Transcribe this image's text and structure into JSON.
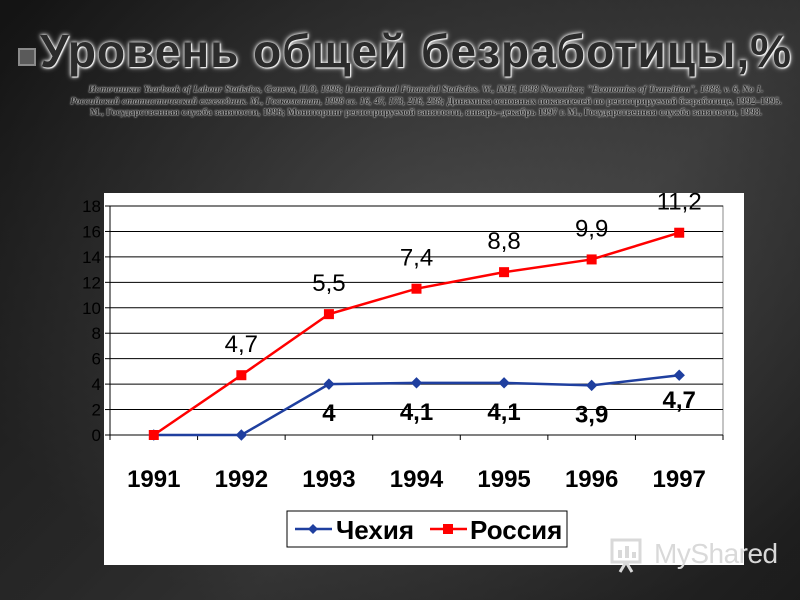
{
  "slide": {
    "title": "Уровень общей безработицы,%",
    "sources": {
      "label": "Источники:",
      "line1": "Yearbook of Labour Statistics, Geneva, ILO, 1998; International Financial Statistics. W., IMF, 1998 November; \"Economics of Transition\", 1988, v. 6, No 1.",
      "line2_italic": "Российский статистический ежегодник. М., Госкомстат, 1998 сс. 16, 47, 173, 216, 238;",
      "line2_rest": "Динамика основных показателей по регистрируемой безработице, 1992–1995. М., Государственная служба занятости, 1996; Мониторинг регистрируемой занятости, январь–декабрь 1997 г. М., Государственная служба занятости, 1998."
    }
  },
  "watermark": {
    "text": "MyShared"
  },
  "chart_data": {
    "type": "line",
    "title": "",
    "xlabel": "",
    "ylabel": "",
    "categories": [
      "1991",
      "1992",
      "1993",
      "1994",
      "1995",
      "1996",
      "1997"
    ],
    "ylim": [
      0,
      18
    ],
    "yticks": [
      0,
      2,
      4,
      6,
      8,
      10,
      12,
      14,
      16,
      18
    ],
    "grid": true,
    "legend_position": "bottom",
    "series": [
      {
        "name": "Чехия",
        "color": "#1f3f9f",
        "marker": "diamond",
        "values": [
          0,
          0,
          4.0,
          4.1,
          4.1,
          3.9,
          4.7
        ],
        "data_labels": [
          "",
          "",
          "4",
          "4,1",
          "4,1",
          "3,9",
          "4,7"
        ]
      },
      {
        "name": "Россия",
        "color": "#ff0000",
        "marker": "square",
        "values": [
          0,
          4.7,
          9.5,
          11.5,
          12.8,
          13.8,
          15.9
        ],
        "data_labels": [
          "",
          "4,7",
          "5,5",
          "7,4",
          "8,8",
          "9,9",
          "11,2"
        ]
      }
    ]
  }
}
